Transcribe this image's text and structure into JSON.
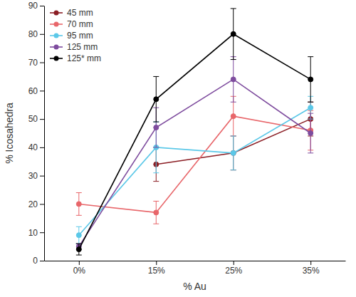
{
  "chart_data": {
    "type": "line",
    "x_label": "% Au",
    "y_label": "% Icosahedra",
    "categories": [
      "0%",
      "15%",
      "25%",
      "35%"
    ],
    "ylim": [
      0,
      90
    ],
    "yticks": [
      0,
      10,
      20,
      30,
      40,
      50,
      60,
      70,
      80,
      90
    ],
    "grid": false,
    "legend": "top-left",
    "marker": "circle",
    "series": [
      {
        "name": "45 mm",
        "color": "#8b1e24",
        "values": [
          null,
          34,
          38,
          50
        ],
        "errors": [
          null,
          6,
          6,
          6
        ]
      },
      {
        "name": "70 mm",
        "color": "#e8666a",
        "values": [
          20,
          17,
          51,
          46
        ],
        "errors": [
          4,
          4,
          7,
          7
        ]
      },
      {
        "name": "95 mm",
        "color": "#5bc8e8",
        "values": [
          9,
          40,
          38,
          54
        ],
        "errors": [
          3,
          9,
          6,
          4
        ]
      },
      {
        "name": "125 mm",
        "color": "#7e4c9e",
        "values": [
          5,
          47,
          64,
          45
        ],
        "errors": [
          1,
          7,
          8,
          7
        ]
      },
      {
        "name": "125* mm",
        "color": "#000000",
        "values": [
          4,
          57,
          80,
          64
        ],
        "errors": [
          2,
          8,
          9,
          8
        ]
      }
    ]
  }
}
